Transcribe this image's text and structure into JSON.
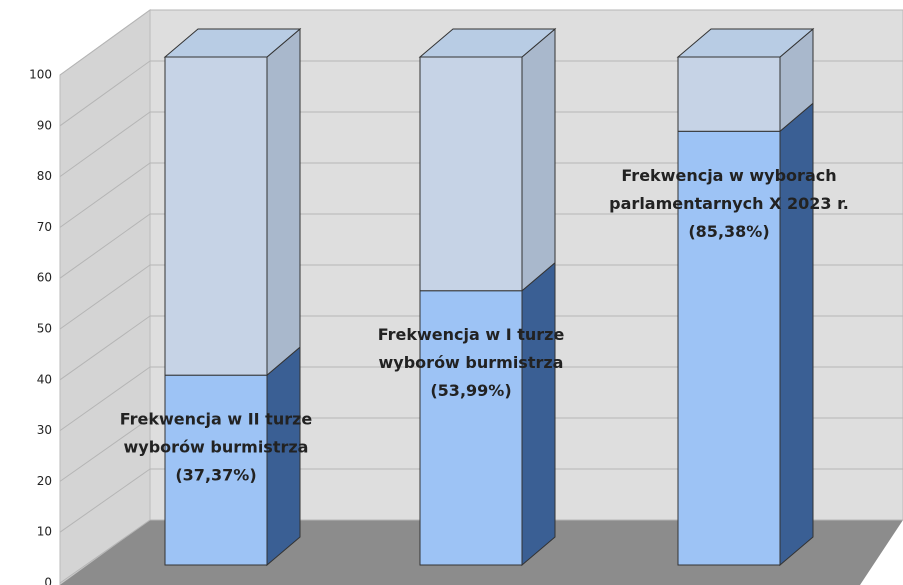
{
  "chart_data": {
    "type": "bar3d_stacked",
    "categories": [
      [
        "Frekwencja w II turze",
        "wyborów burmistrza"
      ],
      [
        "Frekwencja w I turze",
        "wyborów burmistrza"
      ],
      [
        "Frekwencja w wyborach",
        "parlamentarnych X 2023 r."
      ]
    ],
    "series": [
      {
        "color": "#9dc3f5",
        "side_color": "#3a5f94",
        "values": [
          37.37,
          53.99,
          85.38
        ],
        "value_labels": [
          "(37,37%)",
          "(53,99%)",
          "(85,38%)"
        ]
      },
      {
        "color": "#c6d3e6",
        "side_color": "#a9b8cc",
        "values": [
          62.63,
          46.01,
          14.62
        ]
      }
    ],
    "ylim": [
      0,
      100
    ],
    "yticks": [
      0,
      10,
      20,
      30,
      40,
      50,
      60,
      70,
      80,
      90,
      100
    ],
    "grid": true
  }
}
